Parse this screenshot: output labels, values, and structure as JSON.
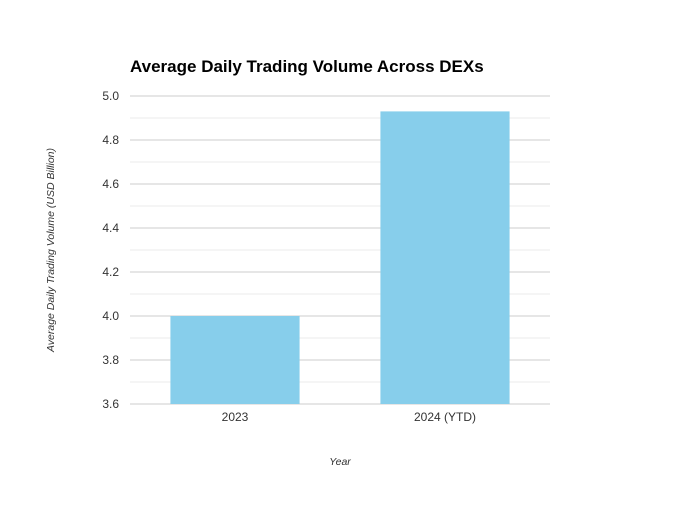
{
  "chart_data": {
    "type": "bar",
    "title": "Average Daily Trading Volume Across DEXs",
    "xlabel": "Year",
    "ylabel": "Average Daily Trading Volume (USD Billion)",
    "categories": [
      "2023",
      "2024 (YTD)"
    ],
    "values": [
      4.0,
      4.93
    ],
    "ylim": [
      3.6,
      5.0
    ],
    "yticks": [
      3.6,
      3.8,
      4.0,
      4.2,
      4.4,
      4.6,
      4.8,
      5.0
    ],
    "ytick_labels": [
      "3.6",
      "3.8",
      "4.0",
      "4.2",
      "4.4",
      "4.6",
      "4.8",
      "5.0"
    ],
    "grid": true,
    "legend": "none",
    "colors": {
      "bar": "#87CEEB",
      "major_grid": "#cccccc",
      "minor_grid": "#ebebeb"
    }
  }
}
